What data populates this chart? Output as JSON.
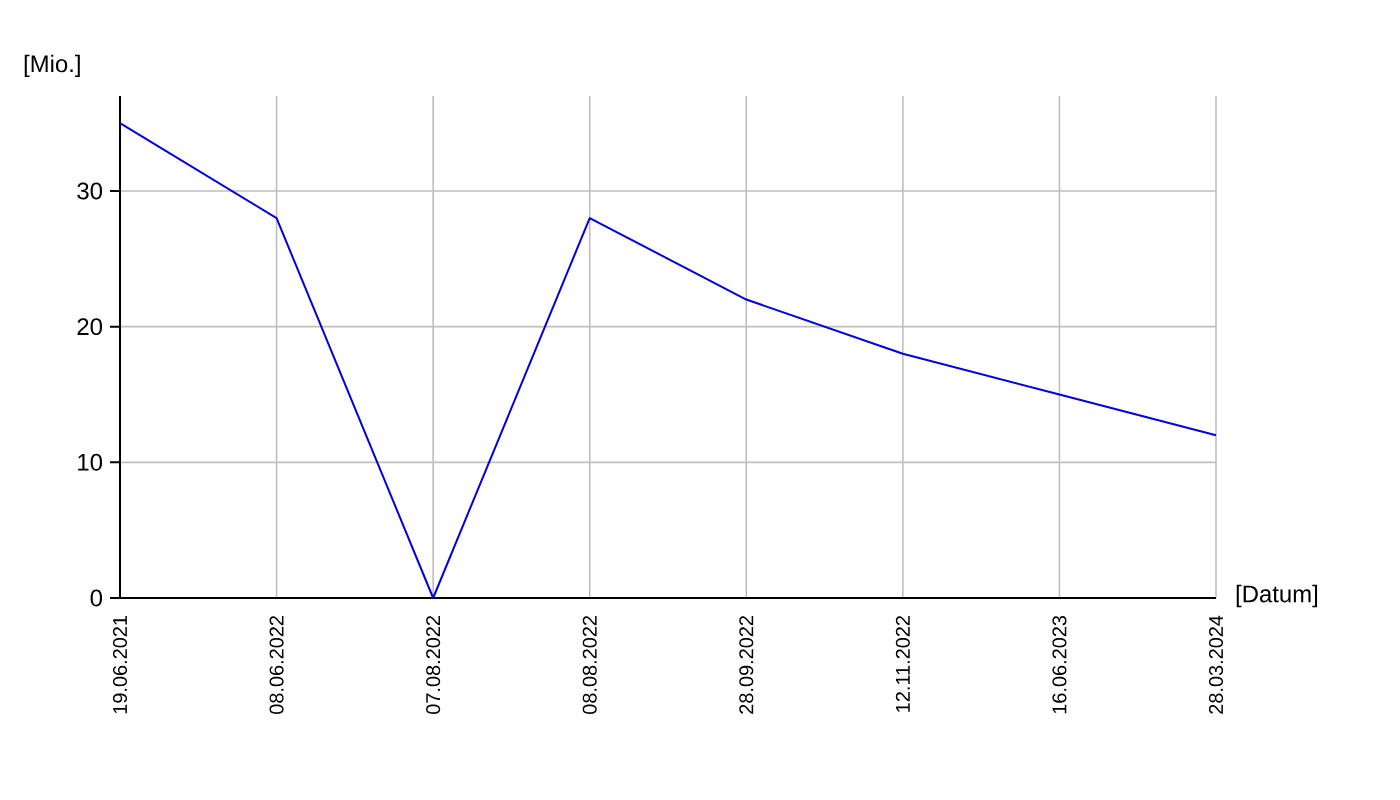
{
  "chart_data": {
    "type": "line",
    "xlabel": "[Datum]",
    "ylabel": "[Mio.]",
    "categories": [
      "19.06.2021",
      "08.06.2022",
      "07.08.2022",
      "08.08.2022",
      "28.09.2022",
      "12.11.2022",
      "16.06.2023",
      "28.03.2024"
    ],
    "series": [
      {
        "color": "#0000e0",
        "values": [
          35,
          28,
          0,
          28,
          22,
          18,
          15,
          12
        ]
      }
    ],
    "ylim": [
      0,
      37
    ],
    "yticks": [
      0,
      10,
      20,
      30
    ],
    "grid": true,
    "marker": "none",
    "line_style": "solid"
  }
}
